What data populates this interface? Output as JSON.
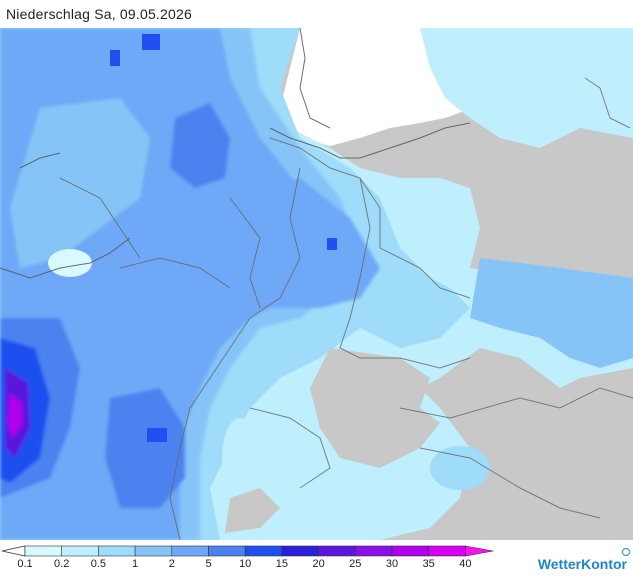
{
  "title": "Niederschlag Sa, 09.05.2026",
  "brand": "WetterKontor",
  "legend": {
    "ticks": [
      "0.1",
      "0.2",
      "0.5",
      "1",
      "2",
      "5",
      "10",
      "15",
      "20",
      "25",
      "30",
      "35",
      "40"
    ],
    "colors": [
      "#d8fafe",
      "#bfeffd",
      "#9fdcfa",
      "#86c4f8",
      "#6ea8f6",
      "#4b82f0",
      "#1f4ff0",
      "#2a20d8",
      "#5a18dc",
      "#8a10e6",
      "#b000ec",
      "#d800f0",
      "#ff10f4"
    ]
  },
  "land_color": "#c8c8c8",
  "water_color": "#ffffff"
}
